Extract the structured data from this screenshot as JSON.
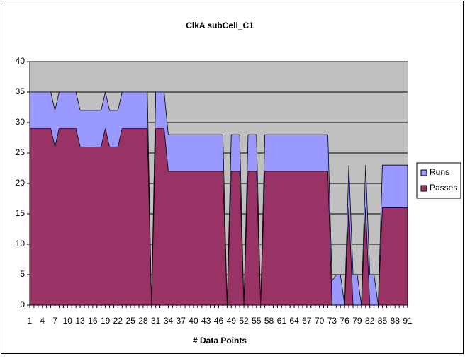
{
  "chart_data": {
    "type": "area",
    "title": "ClkA  subCell_C1",
    "x_label": "# Data Points",
    "categories": [
      1,
      null,
      null,
      4,
      null,
      null,
      7,
      null,
      null,
      10,
      null,
      null,
      13,
      null,
      null,
      16,
      null,
      null,
      19,
      null,
      null,
      22,
      null,
      null,
      25,
      null,
      null,
      28,
      null,
      null,
      31,
      null,
      null,
      34,
      null,
      null,
      37,
      null,
      null,
      40,
      null,
      null,
      43,
      null,
      null,
      46,
      null,
      null,
      49,
      null,
      null,
      52,
      null,
      null,
      55,
      null,
      null,
      58,
      null,
      null,
      61,
      null,
      null,
      64,
      null,
      null,
      67,
      null,
      null,
      70,
      null,
      null,
      73,
      null,
      null,
      76,
      null,
      null,
      79,
      null,
      null,
      82,
      null,
      null,
      85,
      null,
      null,
      88,
      null,
      null,
      91
    ],
    "series": [
      {
        "name": "Runs",
        "color": "#9999ff",
        "values": [
          35,
          35,
          35,
          35,
          35,
          35,
          32,
          35,
          35,
          35,
          35,
          35,
          32,
          32,
          32,
          32,
          32,
          32,
          35,
          32,
          32,
          32,
          35,
          35,
          35,
          35,
          35,
          35,
          35,
          0,
          35,
          35,
          35,
          28,
          28,
          28,
          28,
          28,
          28,
          28,
          28,
          28,
          28,
          28,
          28,
          28,
          28,
          0,
          28,
          28,
          28,
          0,
          28,
          28,
          28,
          0,
          28,
          28,
          28,
          28,
          28,
          28,
          28,
          28,
          28,
          28,
          28,
          28,
          28,
          28,
          28,
          28,
          4,
          5,
          5,
          0,
          23,
          5,
          5,
          0,
          23,
          5,
          5,
          0,
          23,
          23,
          23,
          23,
          23,
          23,
          23
        ]
      },
      {
        "name": "Passes",
        "color": "#993366",
        "values": [
          29,
          29,
          29,
          29,
          29,
          29,
          26,
          29,
          29,
          29,
          29,
          29,
          26,
          26,
          26,
          26,
          26,
          26,
          29,
          26,
          26,
          26,
          29,
          29,
          29,
          29,
          29,
          29,
          29,
          0,
          29,
          29,
          29,
          22,
          22,
          22,
          22,
          22,
          22,
          22,
          22,
          22,
          22,
          22,
          22,
          22,
          22,
          0,
          22,
          22,
          22,
          0,
          22,
          22,
          22,
          0,
          22,
          22,
          22,
          22,
          22,
          22,
          22,
          22,
          22,
          22,
          22,
          22,
          22,
          22,
          22,
          22,
          0,
          0,
          0,
          0,
          16,
          0,
          0,
          0,
          16,
          0,
          0,
          0,
          16,
          16,
          16,
          16,
          16,
          16,
          16
        ]
      }
    ],
    "ylim": [
      0,
      40
    ],
    "yticks": [
      0,
      5,
      10,
      15,
      20,
      25,
      30,
      35,
      40
    ],
    "grid": true,
    "legend": "right"
  }
}
